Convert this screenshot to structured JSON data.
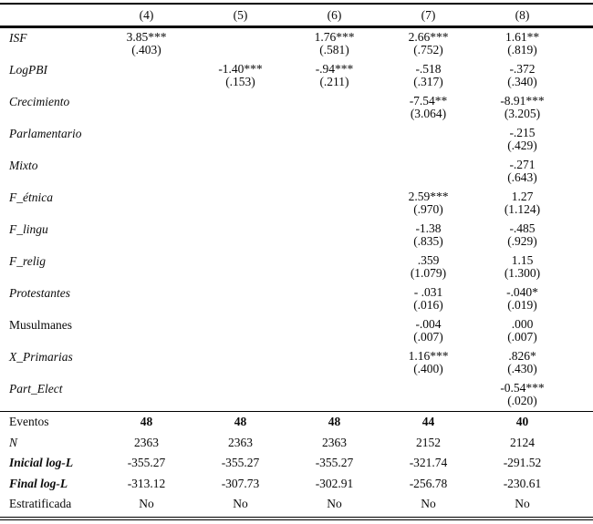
{
  "colors": {
    "background": "#ffffff",
    "text": "#0a0a0a",
    "rule": "#000000"
  },
  "table": {
    "columns": [
      "(4)",
      "(5)",
      "(6)",
      "(7)",
      "(8)"
    ],
    "variables": [
      {
        "label": "ISF",
        "style": "italic",
        "cells": [
          [
            "3.85***",
            "(.403)"
          ],
          [
            "",
            ""
          ],
          [
            "1.76***",
            "(.581)"
          ],
          [
            "2.66***",
            "(.752)"
          ],
          [
            "1.61**",
            "(.819)"
          ]
        ]
      },
      {
        "label": "LogPBI",
        "style": "italic",
        "cells": [
          [
            "",
            ""
          ],
          [
            "-1.40***",
            "(.153)"
          ],
          [
            "-.94***",
            "(.211)"
          ],
          [
            "-.518",
            "(.317)"
          ],
          [
            "-.372",
            "(.340)"
          ]
        ]
      },
      {
        "label": "Crecimiento",
        "style": "italic",
        "cells": [
          [
            "",
            ""
          ],
          [
            "",
            ""
          ],
          [
            "",
            ""
          ],
          [
            "-7.54**",
            "(3.064)"
          ],
          [
            "-8.91***",
            "(3.205)"
          ]
        ]
      },
      {
        "label": "Parlamentario",
        "style": "italic",
        "cells": [
          [
            "",
            ""
          ],
          [
            "",
            ""
          ],
          [
            "",
            ""
          ],
          [
            "",
            ""
          ],
          [
            "-.215",
            "(.429)"
          ]
        ]
      },
      {
        "label": "Mixto",
        "style": "italic",
        "cells": [
          [
            "",
            ""
          ],
          [
            "",
            ""
          ],
          [
            "",
            ""
          ],
          [
            "",
            ""
          ],
          [
            "-.271",
            "(.643)"
          ]
        ]
      },
      {
        "label": "F_étnica",
        "style": "italic",
        "cells": [
          [
            "",
            ""
          ],
          [
            "",
            ""
          ],
          [
            "",
            ""
          ],
          [
            "2.59***",
            "(.970)"
          ],
          [
            "1.27",
            "(1.124)"
          ]
        ]
      },
      {
        "label": "F_lingu",
        "style": "italic",
        "cells": [
          [
            "",
            ""
          ],
          [
            "",
            ""
          ],
          [
            "",
            ""
          ],
          [
            "-1.38",
            "(.835)"
          ],
          [
            "-.485",
            "(.929)"
          ]
        ]
      },
      {
        "label": "F_relig",
        "style": "italic",
        "cells": [
          [
            "",
            ""
          ],
          [
            "",
            ""
          ],
          [
            "",
            ""
          ],
          [
            ".359",
            "(1.079)"
          ],
          [
            "1.15",
            "(1.300)"
          ]
        ]
      },
      {
        "label": "Protestantes",
        "style": "italic",
        "cells": [
          [
            "",
            ""
          ],
          [
            "",
            ""
          ],
          [
            "",
            ""
          ],
          [
            "- .031",
            "(.016)"
          ],
          [
            "-.040*",
            "(.019)"
          ]
        ]
      },
      {
        "label": "Musulmanes",
        "style": "normal",
        "cells": [
          [
            "",
            ""
          ],
          [
            "",
            ""
          ],
          [
            "",
            ""
          ],
          [
            "-.004",
            "(.007)"
          ],
          [
            ".000",
            "(.007)"
          ]
        ]
      },
      {
        "label": "X_Primarias",
        "style": "italic",
        "cells": [
          [
            "",
            ""
          ],
          [
            "",
            ""
          ],
          [
            "",
            ""
          ],
          [
            "1.16***",
            "(.400)"
          ],
          [
            ".826*",
            "(.430)"
          ]
        ]
      },
      {
        "label": "Part_Elect",
        "style": "italic",
        "cells": [
          [
            "",
            ""
          ],
          [
            "",
            ""
          ],
          [
            "",
            ""
          ],
          [
            "",
            ""
          ],
          [
            "-0.54***",
            "(.020)"
          ]
        ]
      }
    ],
    "statistics": [
      {
        "label": "Eventos",
        "style": "normal",
        "values_bold": true,
        "values": [
          "48",
          "48",
          "48",
          "44",
          "40"
        ]
      },
      {
        "label": "N",
        "style": "italic",
        "values_bold": false,
        "values": [
          "2363",
          "2363",
          "2363",
          "2152",
          "2124"
        ]
      },
      {
        "label": "Inicial log-L",
        "style": "bold-italic",
        "values_bold": false,
        "values": [
          "-355.27",
          "-355.27",
          "-355.27",
          "-321.74",
          "-291.52"
        ]
      },
      {
        "label": "Final log-L",
        "style": "bold-italic",
        "values_bold": false,
        "values": [
          "-313.12",
          "-307.73",
          "-302.91",
          "-256.78",
          "-230.61"
        ]
      },
      {
        "label": "Estratificada",
        "style": "normal",
        "values_bold": false,
        "values": [
          "No",
          "No",
          "No",
          "No",
          "No"
        ]
      }
    ]
  }
}
